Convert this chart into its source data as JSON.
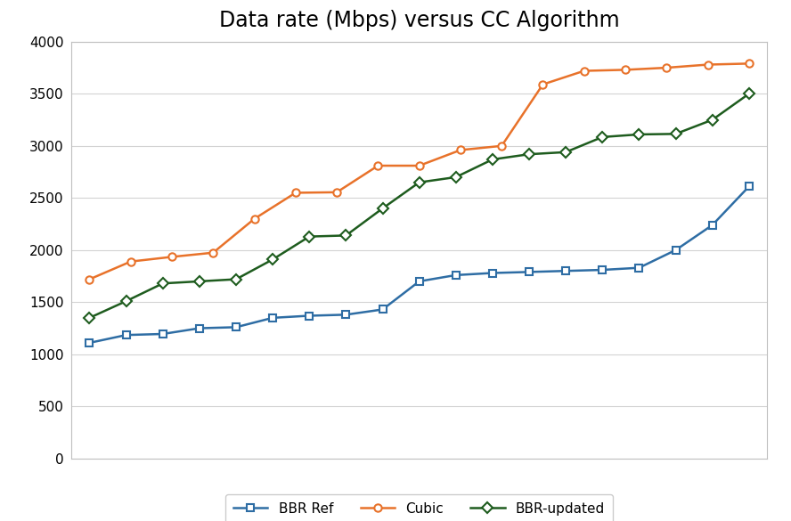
{
  "title": "Data rate (Mbps) versus CC Algorithm",
  "series": {
    "BBR Ref": {
      "color": "#2e6da4",
      "marker": "s",
      "values": [
        1110,
        1185,
        1195,
        1250,
        1260,
        1350,
        1370,
        1380,
        1430,
        1700,
        1760,
        1780,
        1790,
        1800,
        1810,
        1830,
        2000,
        2240,
        2610
      ]
    },
    "Cubic": {
      "color": "#e8722a",
      "marker": "o",
      "values": [
        1720,
        1890,
        1935,
        1975,
        2300,
        2550,
        2555,
        2810,
        2810,
        2960,
        3000,
        3590,
        3720,
        3730,
        3750,
        3780,
        3790
      ]
    },
    "BBR-updated": {
      "color": "#1e5c1e",
      "marker": "D",
      "values": [
        1350,
        1510,
        1680,
        1700,
        1720,
        1910,
        2130,
        2140,
        2400,
        2650,
        2700,
        2870,
        2920,
        2940,
        3085,
        3110,
        3115,
        3250,
        3500
      ]
    }
  },
  "ylim": [
    0,
    4000
  ],
  "yticks": [
    0,
    500,
    1000,
    1500,
    2000,
    2500,
    3000,
    3500,
    4000
  ],
  "background_color": "#ffffff",
  "plot_bg_color": "#ffffff",
  "grid_color": "#d3d3d3",
  "spine_color": "#bfbfbf",
  "title_fontsize": 17,
  "tick_fontsize": 11,
  "legend_fontsize": 11,
  "linewidth": 1.8,
  "markersize": 6
}
